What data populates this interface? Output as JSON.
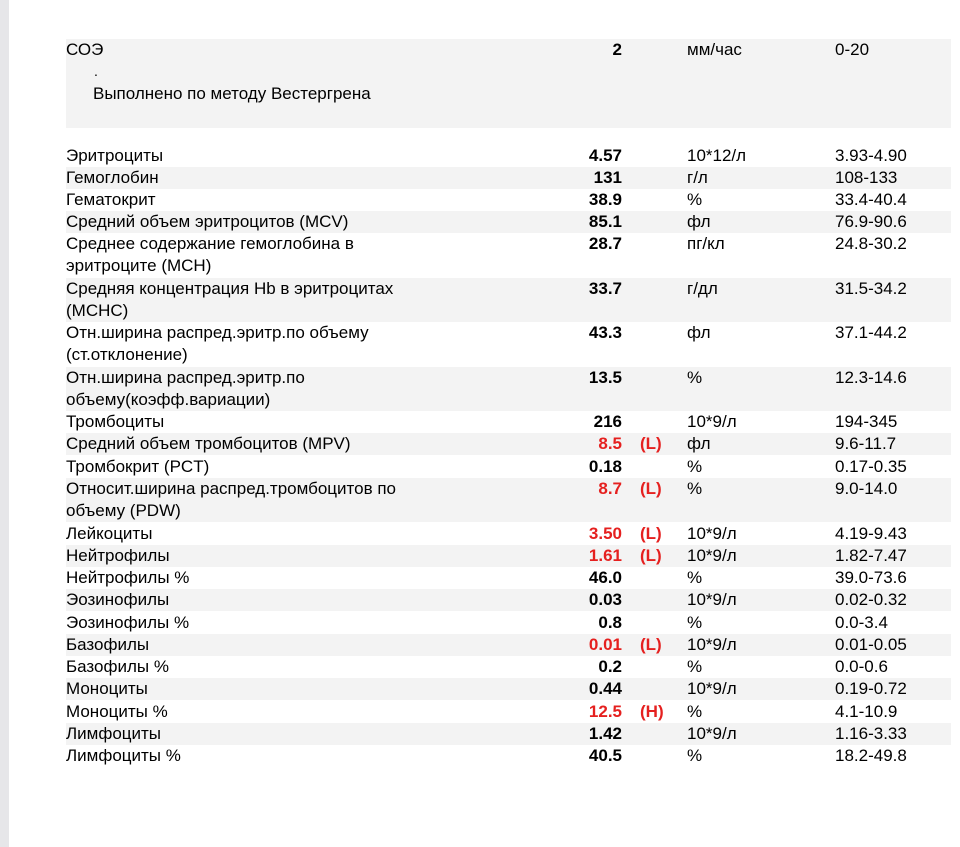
{
  "soe": {
    "name": "СОЭ",
    "value": "2",
    "unit": "мм/час",
    "ref": "0-20",
    "dot": ".",
    "method": "Выполнено по методу Вестергрена"
  },
  "rows": [
    {
      "name": "Эритроциты",
      "value": "4.57",
      "flag": "",
      "unit": "10*12/л",
      "ref": "3.93-4.90"
    },
    {
      "name": "Гемоглобин",
      "value": "131",
      "flag": "",
      "unit": "г/л",
      "ref": "108-133"
    },
    {
      "name": "Гематокрит",
      "value": "38.9",
      "flag": "",
      "unit": "%",
      "ref": "33.4-40.4"
    },
    {
      "name": "Средний объем эритроцитов (MCV)",
      "value": "85.1",
      "flag": "",
      "unit": "фл",
      "ref": "76.9-90.6"
    },
    {
      "name": "Среднее содержание гемоглобина в эритроците (MCH)",
      "value": "28.7",
      "flag": "",
      "unit": "пг/кл",
      "ref": "24.8-30.2"
    },
    {
      "name": "Средняя концентрация Hb в эритроцитах (MCHC)",
      "value": "33.7",
      "flag": "",
      "unit": "г/дл",
      "ref": "31.5-34.2"
    },
    {
      "name": "Отн.ширина распред.эритр.по объему (ст.отклонение)",
      "value": "43.3",
      "flag": "",
      "unit": "фл",
      "ref": "37.1-44.2"
    },
    {
      "name": "Отн.ширина распред.эритр.по объему(коэфф.вариации)",
      "value": "13.5",
      "flag": "",
      "unit": "%",
      "ref": "12.3-14.6"
    },
    {
      "name": "Тромбоциты",
      "value": "216",
      "flag": "",
      "unit": "10*9/л",
      "ref": "194-345"
    },
    {
      "name": "Средний объем тромбоцитов (MPV)",
      "value": "8.5",
      "flag": "(L)",
      "unit": "фл",
      "ref": "9.6-11.7"
    },
    {
      "name": "Тромбокрит (PCT)",
      "value": "0.18",
      "flag": "",
      "unit": "%",
      "ref": "0.17-0.35"
    },
    {
      "name": "Относит.ширина распред.тромбоцитов по объему (PDW)",
      "value": "8.7",
      "flag": "(L)",
      "unit": "%",
      "ref": "9.0-14.0"
    },
    {
      "name": "Лейкоциты",
      "value": "3.50",
      "flag": "(L)",
      "unit": "10*9/л",
      "ref": "4.19-9.43"
    },
    {
      "name": "Нейтрофилы",
      "value": "1.61",
      "flag": "(L)",
      "unit": "10*9/л",
      "ref": "1.82-7.47"
    },
    {
      "name": "Нейтрофилы %",
      "value": "46.0",
      "flag": "",
      "unit": "%",
      "ref": "39.0-73.6"
    },
    {
      "name": "Эозинофилы",
      "value": "0.03",
      "flag": "",
      "unit": "10*9/л",
      "ref": "0.02-0.32"
    },
    {
      "name": "Эозинофилы %",
      "value": "0.8",
      "flag": "",
      "unit": "%",
      "ref": "0.0-3.4"
    },
    {
      "name": "Базофилы",
      "value": "0.01",
      "flag": "(L)",
      "unit": "10*9/л",
      "ref": "0.01-0.05"
    },
    {
      "name": "Базофилы %",
      "value": "0.2",
      "flag": "",
      "unit": "%",
      "ref": "0.0-0.6"
    },
    {
      "name": "Моноциты",
      "value": "0.44",
      "flag": "",
      "unit": "10*9/л",
      "ref": "0.19-0.72"
    },
    {
      "name": "Моноциты %",
      "value": "12.5",
      "flag": "(H)",
      "unit": "%",
      "ref": "4.1-10.9"
    },
    {
      "name": "Лимфоциты",
      "value": "1.42",
      "flag": "",
      "unit": "10*9/л",
      "ref": "1.16-3.33"
    },
    {
      "name": "Лимфоциты %",
      "value": "40.5",
      "flag": "",
      "unit": "%",
      "ref": "18.2-49.8"
    }
  ],
  "colors": {
    "abnormal": "#e5201f",
    "row_shade": "#f3f3f3"
  }
}
